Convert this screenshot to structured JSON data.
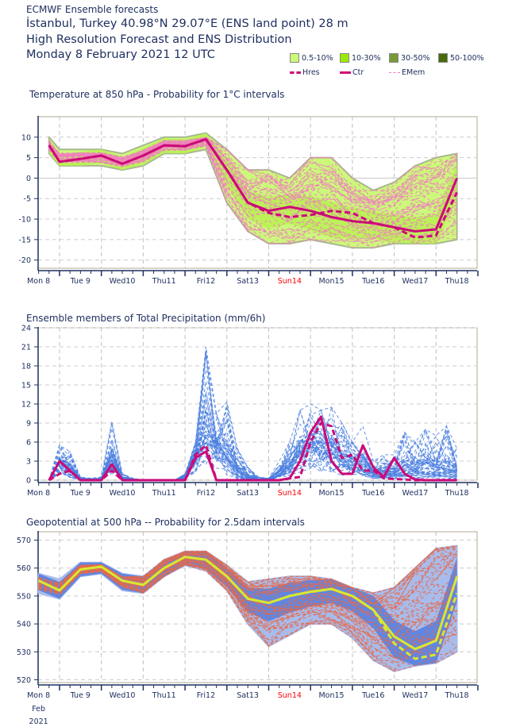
{
  "header": {
    "line1": "ECMWF Ensemble forecasts",
    "line2": "İstanbul, Turkey 40.98°N 29.07°E (ENS land point) 28 m",
    "line3": "High Resolution Forecast and ENS Distribution",
    "line4": "Monday  8 February 2021 12 UTC"
  },
  "legend": {
    "prob": [
      {
        "label": "0.5-10%",
        "color": "#ccf97a"
      },
      {
        "label": "10-30%",
        "color": "#9ce80a"
      },
      {
        "label": "30-50%",
        "color": "#789a3a"
      },
      {
        "label": "50-100%",
        "color": "#4a6a0a"
      }
    ],
    "lines": [
      {
        "label": "Hres",
        "color": "#cc0a78",
        "style": "dashed-thick"
      },
      {
        "label": "Ctr",
        "color": "#cc0a78",
        "style": "solid-thick"
      },
      {
        "label": "EMem",
        "color": "#f080c0",
        "style": "dashed-thin"
      }
    ]
  },
  "x_axis": {
    "day_labels": [
      "Mon 8",
      "Tue 9",
      "Wed10",
      "Thu11",
      "Fri12",
      "Sat13",
      "Sun14",
      "Mon15",
      "Tue16",
      "Wed17",
      "Thu18"
    ],
    "highlight_label": "Sun14",
    "highlight_color": "#ff0000",
    "footer_month": "Feb",
    "footer_year": "2021"
  },
  "chart_data": [
    {
      "type": "line",
      "title": "Temperature at 850 hPa - Probability for 1°C intervals",
      "xlabel": "",
      "ylabel": "°C",
      "ylim": [
        -22,
        15
      ],
      "yticks": [
        10,
        5,
        0,
        -5,
        -10,
        -15,
        -20
      ],
      "x_unit": "hours since Mon 8 Feb 2021 00 UTC",
      "grid": true,
      "x": [
        18,
        24,
        36,
        48,
        60,
        72,
        84,
        96,
        108,
        120,
        132,
        144,
        156,
        168,
        180,
        192,
        204,
        216,
        228,
        240,
        252
      ],
      "series": [
        {
          "name": "Ctr",
          "values": [
            8,
            4,
            4.7,
            5.5,
            3.5,
            5.5,
            8,
            7.8,
            9.5,
            2,
            -6,
            -8,
            -7,
            -8,
            -9.5,
            -10.5,
            -11,
            -12,
            -13,
            -12.5,
            0
          ]
        },
        {
          "name": "Hres",
          "values": [
            8,
            4,
            4.7,
            5.5,
            3.5,
            5.5,
            8,
            7.8,
            9.5,
            2,
            -6,
            -8.5,
            -9.5,
            -9,
            -8,
            -8.5,
            -11,
            -12,
            -14.5,
            -14,
            -3.5
          ]
        },
        {
          "name": "EMem spread max",
          "values": [
            10,
            7,
            7,
            7,
            6,
            8,
            10,
            10,
            11,
            7,
            2,
            2,
            0,
            5,
            5,
            0,
            -3,
            -1,
            3,
            5,
            6
          ]
        },
        {
          "name": "EMem spread min",
          "values": [
            6,
            3,
            3,
            3,
            2,
            3,
            6,
            6,
            7,
            -6,
            -13,
            -16,
            -16,
            -15,
            -16,
            -17,
            -17,
            -16,
            -16,
            -16,
            -15
          ]
        }
      ]
    },
    {
      "type": "line",
      "title": "Ensemble members of Total Precipitation (mm/6h)",
      "xlabel": "",
      "ylabel": "mm/6h",
      "ylim": [
        0,
        24
      ],
      "yticks": [
        24,
        21,
        18,
        15,
        12,
        9,
        6,
        3,
        0
      ],
      "x_unit": "hours since Mon 8 Feb 2021 00 UTC",
      "grid": true,
      "x": [
        18,
        24,
        30,
        36,
        42,
        48,
        54,
        60,
        66,
        72,
        78,
        84,
        90,
        96,
        102,
        108,
        114,
        120,
        126,
        132,
        138,
        144,
        150,
        156,
        162,
        168,
        174,
        180,
        186,
        192,
        198,
        204,
        210,
        216,
        222,
        228,
        234,
        240,
        246,
        252
      ],
      "series": [
        {
          "name": "Ctr",
          "values": [
            0,
            3,
            1.5,
            0,
            0,
            0,
            2.5,
            0,
            0,
            0,
            0,
            0,
            0,
            0,
            3.5,
            4.5,
            0,
            0,
            0,
            0,
            0,
            0,
            0,
            0.3,
            3,
            7.5,
            10,
            3,
            1,
            1,
            5.5,
            2,
            0.5,
            3.5,
            1,
            0.1,
            0,
            0,
            0,
            0
          ]
        },
        {
          "name": "Hres",
          "values": [
            0,
            1,
            1.5,
            0,
            0,
            0,
            1.5,
            0,
            0,
            0,
            0,
            0,
            0,
            0,
            4,
            5.5,
            0,
            0,
            0,
            0,
            0,
            0,
            0,
            0.3,
            0.5,
            6,
            9,
            8.5,
            3.5,
            4,
            1.5,
            1.5,
            0.3,
            0.2,
            0.1,
            0,
            0,
            0,
            0,
            0
          ]
        },
        {
          "name": "EMem max",
          "values": [
            0,
            5.5,
            4.5,
            0.5,
            0.3,
            0.5,
            9.3,
            1,
            0.3,
            0,
            0,
            0,
            0,
            1,
            6,
            21,
            10.5,
            12.3,
            5,
            2,
            0.5,
            0.3,
            3,
            6,
            11,
            12,
            11,
            11.5,
            9,
            6,
            8.5,
            3,
            4,
            4,
            7.5,
            6,
            8,
            7,
            8.5,
            5
          ]
        },
        {
          "name": "EMem median",
          "values": [
            0,
            2,
            1,
            0.1,
            0,
            0.1,
            2,
            0.2,
            0,
            0,
            0,
            0,
            0,
            0.5,
            3,
            5,
            4,
            2,
            0.5,
            0.1,
            0,
            0,
            0.5,
            1.5,
            3,
            4,
            4,
            3,
            2,
            1.5,
            1,
            0.5,
            0.5,
            0.5,
            0.5,
            0.5,
            0.5,
            0.5,
            0.5,
            0.3
          ]
        }
      ]
    },
    {
      "type": "line",
      "title": "Geopotential at 500 hPa -- Probability for 2.5dam intervals",
      "xlabel": "",
      "ylabel": "dam",
      "ylim": [
        519,
        573
      ],
      "yticks": [
        570,
        560,
        550,
        540,
        530,
        520
      ],
      "x_unit": "hours since Mon 8 Feb 2021 00 UTC",
      "grid": true,
      "x": [
        12,
        24,
        36,
        48,
        60,
        72,
        84,
        96,
        108,
        120,
        132,
        144,
        156,
        168,
        180,
        192,
        204,
        216,
        228,
        240,
        252
      ],
      "series": [
        {
          "name": "Ctr",
          "values": [
            555.5,
            552,
            559.5,
            560.5,
            555.5,
            554,
            560,
            564,
            563,
            557,
            549,
            547.5,
            550,
            551.5,
            552.5,
            550,
            545,
            535.5,
            531,
            534,
            557
          ]
        },
        {
          "name": "Hres",
          "values": [
            555.5,
            552,
            559.5,
            560.5,
            555.5,
            554,
            560,
            564,
            563,
            557,
            549,
            547.5,
            550,
            551.5,
            552.5,
            550,
            545,
            533,
            527.5,
            529,
            551
          ]
        },
        {
          "name": "EMem spread max",
          "values": [
            558,
            556,
            562,
            562,
            558,
            557,
            563,
            566,
            566,
            561,
            555,
            556,
            557,
            557,
            556,
            553,
            551,
            553,
            560,
            567,
            568
          ]
        },
        {
          "name": "EMem spread min",
          "values": [
            551,
            549,
            557,
            558,
            552,
            551,
            557,
            561,
            559,
            552,
            540,
            532,
            536,
            540,
            540,
            535,
            527,
            523,
            525,
            526,
            530
          ]
        }
      ]
    }
  ]
}
